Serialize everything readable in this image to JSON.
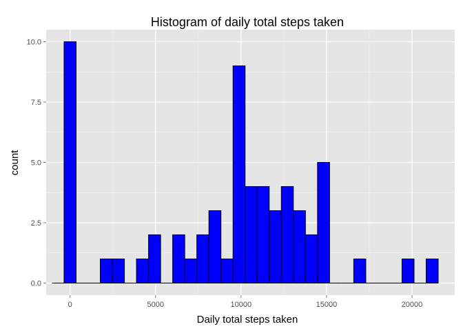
{
  "chart_data": {
    "type": "bar",
    "title": "Histogram of daily total steps taken",
    "xlabel": "Daily total steps taken",
    "ylabel": "count",
    "binwidth": 706,
    "first_bin_center": 0,
    "counts": [
      0,
      10,
      0,
      0,
      1,
      1,
      0,
      1,
      2,
      0,
      2,
      1,
      2,
      3,
      1,
      9,
      4,
      4,
      3,
      4,
      3,
      2,
      5,
      0,
      0,
      1,
      0,
      0,
      0,
      1,
      0,
      1
    ],
    "xlim": [
      -1400,
      22500
    ],
    "ylim": [
      -0.5,
      10.5
    ],
    "x_ticks": [
      0,
      5000,
      10000,
      15000,
      20000
    ],
    "x_tick_labels": [
      "0",
      "5000",
      "10000",
      "15000",
      "20000"
    ],
    "y_ticks": [
      0,
      2.5,
      5,
      7.5,
      10
    ],
    "y_tick_labels": [
      "0.0",
      "2.5",
      "5.0",
      "7.5",
      "10.0"
    ],
    "grid": true,
    "colors": {
      "bar_fill": "#0000FF",
      "bar_stroke": "#000000",
      "panel_bg": "#E5E5E5",
      "grid_major": "#FFFFFF",
      "grid_minor": "#F2F2F2"
    }
  }
}
